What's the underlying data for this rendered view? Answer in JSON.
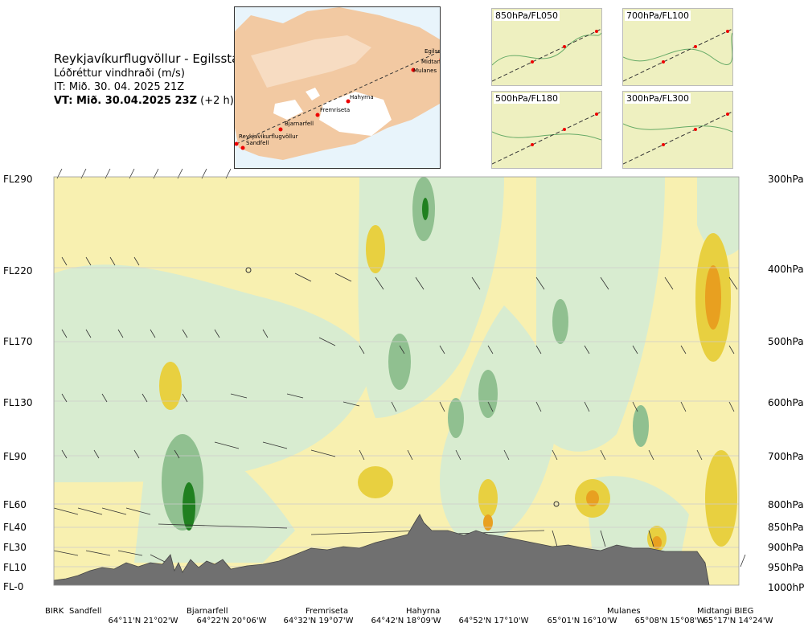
{
  "header": {
    "title": "Reykjavíkurflugvöllur - Egilsstadir",
    "subtitle": "Lóðréttur vindhraði (m/s)",
    "issue_time": "IT: Mið. 30. 04. 2025 21Z",
    "valid_time_bold": "VT: Mið. 30.04.2025 23Z",
    "valid_time_rest": " (+2 h)"
  },
  "map": {
    "places": [
      "Egilsstaðir",
      "Midtangi",
      "Mulanes",
      "Hahyrna",
      "Fremriseta",
      "Bjarnarfell",
      "Reykjavíkurflugvöllur",
      "Sandfell"
    ]
  },
  "panels": [
    "850hPa/FL050",
    "700hPa/FL100",
    "500hPa/FL180",
    "300hPa/FL300"
  ],
  "flight_levels": [
    "FL290",
    "FL220",
    "FL170",
    "FL130",
    "FL90",
    "FL60",
    "FL40",
    "FL30",
    "FL10",
    "FL-0"
  ],
  "pressure_levels": [
    "300hPa",
    "400hPa",
    "500hPa",
    "600hPa",
    "700hPa",
    "800hPa",
    "850hPa",
    "900hPa",
    "950hPa",
    "1000hPa"
  ],
  "waypoints": [
    "BIRK",
    "Sandfell",
    "Bjarnarfell",
    "Fremriseta",
    "Hahyrna",
    "Mulanes",
    "Midtangi BIEG"
  ],
  "coordinates": [
    "64°11'N 21°02'W",
    "64°22'N 20°06'W",
    "64°32'N 19°07'W",
    "64°42'N 18°09'W",
    "64°52'N 17°10'W",
    "65°01'N 16°10'W",
    "65°08'N 15°08'W",
    "65°17'N 14°24'W"
  ],
  "colors": {
    "updraft_light": "#f8f0b0",
    "updraft": "#e8d040",
    "updraft_strong": "#e8a020",
    "downdraft_light": "#d8ecd0",
    "downdraft": "#90c090",
    "downdraft_strong": "#208020",
    "terrain": "#707070"
  }
}
